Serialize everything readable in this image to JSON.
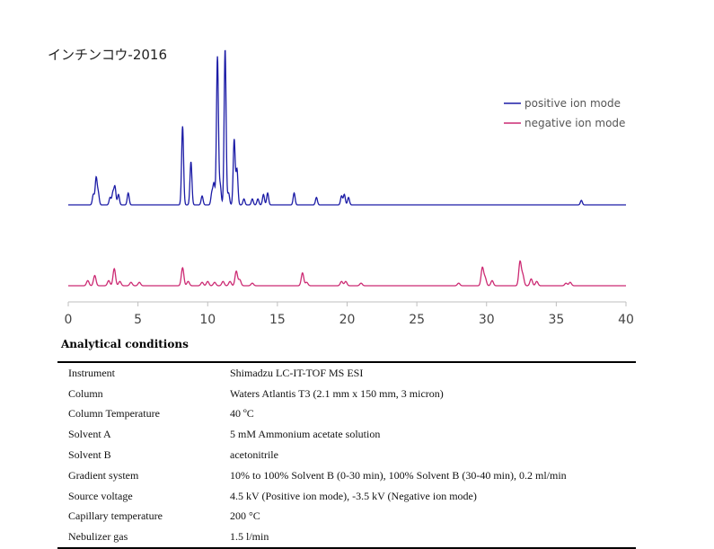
{
  "chart_data": {
    "type": "line",
    "title": "インチンコウ-2016",
    "xlim": [
      0,
      40
    ],
    "x_ticks": [
      "0",
      "5",
      "10",
      "15",
      "20",
      "25",
      "30",
      "35",
      "40"
    ],
    "grid": false,
    "legend_position": "top-right",
    "series": [
      {
        "name": "positive ion mode",
        "color": "#1c1ca6",
        "peaks": [
          [
            1.8,
            0.07
          ],
          [
            2.0,
            0.18
          ],
          [
            2.15,
            0.08
          ],
          [
            3.0,
            0.05
          ],
          [
            3.2,
            0.08
          ],
          [
            3.35,
            0.12
          ],
          [
            3.6,
            0.07
          ],
          [
            4.3,
            0.08
          ],
          [
            8.2,
            0.53
          ],
          [
            8.8,
            0.29
          ],
          [
            9.6,
            0.06
          ],
          [
            10.3,
            0.08
          ],
          [
            10.45,
            0.14
          ],
          [
            10.7,
            1.0
          ],
          [
            10.9,
            0.13
          ],
          [
            11.25,
            1.05
          ],
          [
            11.5,
            0.08
          ],
          [
            11.9,
            0.44
          ],
          [
            12.1,
            0.24
          ],
          [
            12.6,
            0.04
          ],
          [
            13.2,
            0.04
          ],
          [
            13.6,
            0.04
          ],
          [
            14.0,
            0.07
          ],
          [
            14.3,
            0.08
          ],
          [
            16.2,
            0.08
          ],
          [
            17.8,
            0.05
          ],
          [
            19.6,
            0.06
          ],
          [
            19.8,
            0.07
          ],
          [
            20.1,
            0.05
          ],
          [
            36.8,
            0.03
          ]
        ]
      },
      {
        "name": "negative ion mode",
        "color": "#cc2a73",
        "peaks": [
          [
            1.4,
            0.06
          ],
          [
            1.9,
            0.12
          ],
          [
            2.9,
            0.06
          ],
          [
            3.3,
            0.2
          ],
          [
            3.7,
            0.05
          ],
          [
            4.5,
            0.04
          ],
          [
            5.1,
            0.04
          ],
          [
            8.2,
            0.21
          ],
          [
            8.6,
            0.05
          ],
          [
            9.6,
            0.04
          ],
          [
            10.0,
            0.05
          ],
          [
            10.5,
            0.04
          ],
          [
            11.1,
            0.05
          ],
          [
            11.6,
            0.05
          ],
          [
            12.05,
            0.17
          ],
          [
            12.3,
            0.07
          ],
          [
            13.2,
            0.03
          ],
          [
            16.8,
            0.15
          ],
          [
            17.1,
            0.04
          ],
          [
            19.6,
            0.05
          ],
          [
            19.9,
            0.05
          ],
          [
            21.0,
            0.03
          ],
          [
            28.0,
            0.03
          ],
          [
            29.7,
            0.21
          ],
          [
            29.9,
            0.09
          ],
          [
            30.4,
            0.06
          ],
          [
            32.4,
            0.28
          ],
          [
            32.6,
            0.12
          ],
          [
            33.2,
            0.08
          ],
          [
            33.6,
            0.05
          ],
          [
            35.7,
            0.03
          ],
          [
            36.0,
            0.04
          ]
        ]
      }
    ]
  },
  "conditions": {
    "heading": "Analytical conditions",
    "rows": [
      {
        "label": "Instrument",
        "value": "Shimadzu LC-IT-TOF MS ESI"
      },
      {
        "label": "Column",
        "value": "Waters Atlantis T3 (2.1 mm x 150 mm, 3 micron)"
      },
      {
        "label": "Column Temperature",
        "value": "40 ºC"
      },
      {
        "label": "Solvent A",
        "value": "5 mM Ammonium acetate solution"
      },
      {
        "label": "Solvent B",
        "value": "acetonitrile"
      },
      {
        "label": "Gradient system",
        "value": "10% to 100% Solvent B (0-30 min), 100% Solvent B (30-40 min), 0.2 ml/min"
      },
      {
        "label": "Source voltage",
        "value": "4.5 kV (Positive ion mode), -3.5 kV (Negative ion mode)"
      },
      {
        "label": "Capillary temperature",
        "value": "200 °C"
      },
      {
        "label": "Nebulizer gas",
        "value": "1.5 l/min"
      }
    ]
  }
}
